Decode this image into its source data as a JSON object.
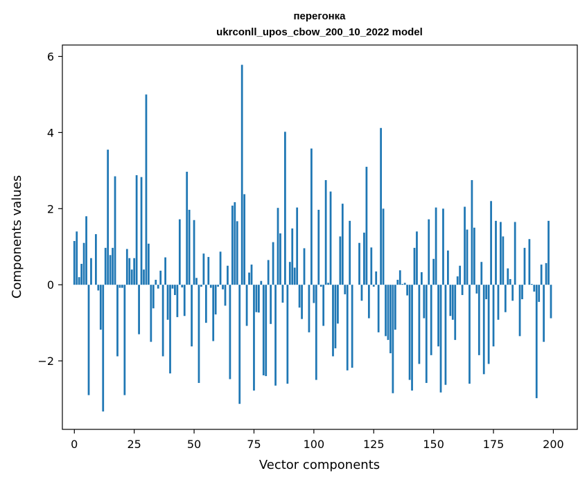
{
  "chart_data": {
    "type": "bar",
    "title": "перегонка",
    "subtitle": "ukrconll_upos_cbow_200_10_2022 model",
    "xlabel": "Vector components",
    "ylabel": "Components values",
    "xlim": [
      -5,
      210
    ],
    "ylim": [
      -3.8,
      6.3
    ],
    "xticks": [
      0,
      25,
      50,
      75,
      100,
      125,
      150,
      175,
      200
    ],
    "yticks": [
      -2,
      0,
      2,
      4,
      6
    ],
    "xtick_labels": [
      "0",
      "25",
      "50",
      "75",
      "100",
      "125",
      "150",
      "175",
      "200"
    ],
    "ytick_labels": [
      "−2",
      "0",
      "2",
      "4",
      "6"
    ],
    "grid": false,
    "bar_color": "#1f77b4",
    "x": [
      0,
      1,
      2,
      3,
      4,
      5,
      6,
      7,
      8,
      9,
      10,
      11,
      12,
      13,
      14,
      15,
      16,
      17,
      18,
      19,
      20,
      21,
      22,
      23,
      24,
      25,
      26,
      27,
      28,
      29,
      30,
      31,
      32,
      33,
      34,
      35,
      36,
      37,
      38,
      39,
      40,
      41,
      42,
      43,
      44,
      45,
      46,
      47,
      48,
      49,
      50,
      51,
      52,
      53,
      54,
      55,
      56,
      57,
      58,
      59,
      60,
      61,
      62,
      63,
      64,
      65,
      66,
      67,
      68,
      69,
      70,
      71,
      72,
      73,
      74,
      75,
      76,
      77,
      78,
      79,
      80,
      81,
      82,
      83,
      84,
      85,
      86,
      87,
      88,
      89,
      90,
      91,
      92,
      93,
      94,
      95,
      96,
      97,
      98,
      99,
      100,
      101,
      102,
      103,
      104,
      105,
      106,
      107,
      108,
      109,
      110,
      111,
      112,
      113,
      114,
      115,
      116,
      117,
      118,
      119,
      120,
      121,
      122,
      123,
      124,
      125,
      126,
      127,
      128,
      129,
      130,
      131,
      132,
      133,
      134,
      135,
      136,
      137,
      138,
      139,
      140,
      141,
      142,
      143,
      144,
      145,
      146,
      147,
      148,
      149,
      150,
      151,
      152,
      153,
      154,
      155,
      156,
      157,
      158,
      159,
      160,
      161,
      162,
      163,
      164,
      165,
      166,
      167,
      168,
      169,
      170,
      171,
      172,
      173,
      174,
      175,
      176,
      177,
      178,
      179,
      180,
      181,
      182,
      183,
      184,
      185,
      186,
      187,
      188,
      189,
      190,
      191,
      192,
      193,
      194,
      195,
      196,
      197,
      198,
      199
    ],
    "values": [
      1.15,
      1.4,
      0.2,
      0.55,
      1.1,
      1.8,
      -2.9,
      0.7,
      0.0,
      1.33,
      -0.15,
      -1.18,
      -3.33,
      0.97,
      3.55,
      0.78,
      0.97,
      2.85,
      -1.88,
      -0.08,
      -0.08,
      -2.9,
      0.94,
      0.7,
      0.4,
      0.7,
      2.88,
      -1.3,
      2.83,
      0.4,
      5.0,
      1.08,
      -1.5,
      -0.62,
      0.13,
      -0.1,
      0.37,
      -1.88,
      0.72,
      -0.92,
      -2.33,
      -0.1,
      -0.27,
      -0.85,
      1.72,
      -0.07,
      -0.82,
      2.97,
      1.97,
      -1.62,
      1.7,
      0.18,
      -2.58,
      -0.05,
      0.82,
      -1.0,
      0.73,
      -0.08,
      -1.48,
      -0.78,
      -0.05,
      0.87,
      -0.12,
      -0.55,
      0.5,
      -2.48,
      2.08,
      2.17,
      1.67,
      -3.13,
      5.78,
      2.38,
      -1.08,
      0.32,
      0.53,
      -2.78,
      -0.72,
      -0.73,
      0.1,
      -2.38,
      -2.4,
      0.65,
      -1.03,
      1.12,
      -2.65,
      2.02,
      1.35,
      -0.47,
      4.02,
      -2.6,
      0.6,
      1.48,
      0.45,
      2.03,
      -0.6,
      -0.9,
      0.96,
      0.0,
      -1.25,
      3.58,
      -0.48,
      -2.5,
      1.97,
      -0.05,
      -1.08,
      2.75,
      0.05,
      2.45,
      -1.88,
      -1.67,
      -1.02,
      1.27,
      2.13,
      -0.25,
      -2.25,
      1.68,
      -2.18,
      0.0,
      0.0,
      1.1,
      -0.42,
      1.37,
      3.1,
      -0.88,
      0.98,
      -0.05,
      0.35,
      -1.25,
      4.12,
      2.0,
      -1.35,
      -1.45,
      -1.8,
      -2.85,
      -1.18,
      0.13,
      0.38,
      0.02,
      0.05,
      -0.28,
      -2.5,
      -2.78,
      0.97,
      1.4,
      -2.08,
      0.33,
      -0.88,
      -2.58,
      1.72,
      -1.85,
      0.68,
      2.03,
      -1.62,
      -2.83,
      2.0,
      -2.63,
      0.9,
      -0.82,
      -0.92,
      -1.45,
      0.22,
      0.5,
      -0.27,
      2.05,
      1.45,
      -2.6,
      2.75,
      1.5,
      -0.23,
      -1.85,
      0.6,
      -2.35,
      -0.38,
      -2.08,
      2.2,
      -1.62,
      1.68,
      -0.92,
      1.65,
      1.27,
      -0.72,
      0.43,
      0.15,
      -0.42,
      1.65,
      0.0,
      -1.35,
      -0.38,
      0.97,
      0.0,
      1.2,
      0.02,
      -0.18,
      -2.98,
      -0.45,
      0.53,
      -1.5,
      0.57,
      1.68,
      -0.88
    ]
  }
}
